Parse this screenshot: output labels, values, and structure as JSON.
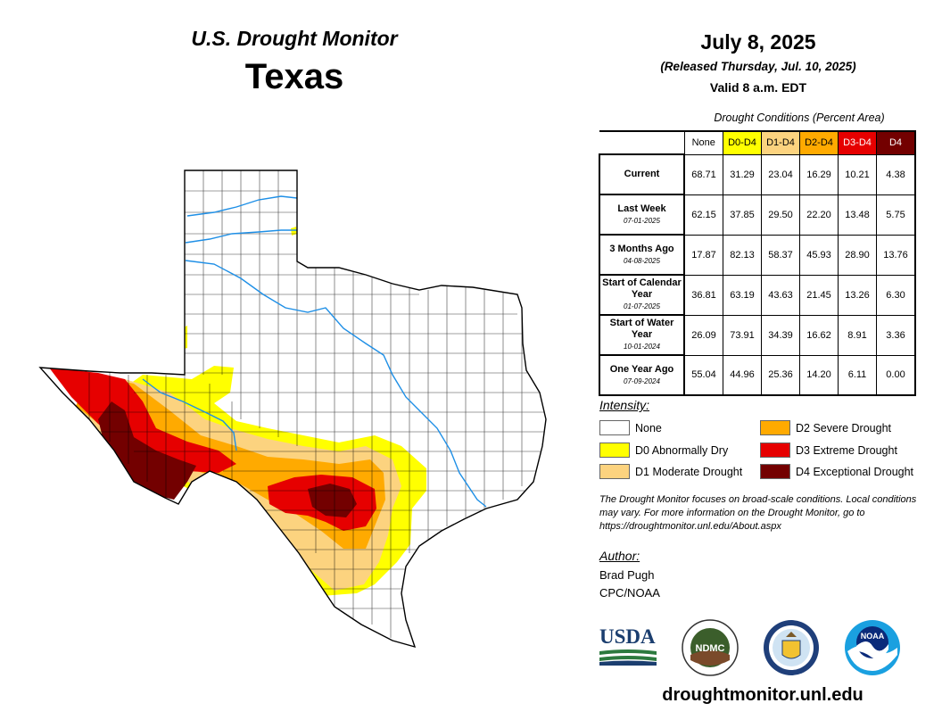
{
  "header": {
    "subtitle": "U.S. Drought Monitor",
    "title": "Texas",
    "date": "July 8, 2025",
    "released": "(Released Thursday, Jul. 10, 2025)",
    "valid": "Valid 8 a.m. EDT"
  },
  "table": {
    "title": "Drought Conditions (Percent Area)",
    "columns": [
      {
        "label": "None",
        "color": "#ffffff",
        "text_color": "#000000"
      },
      {
        "label": "D0-D4",
        "color": "#ffff00",
        "text_color": "#000000"
      },
      {
        "label": "D1-D4",
        "color": "#fcd37f",
        "text_color": "#000000"
      },
      {
        "label": "D2-D4",
        "color": "#ffaa00",
        "text_color": "#000000"
      },
      {
        "label": "D3-D4",
        "color": "#e60000",
        "text_color": "#ffffff"
      },
      {
        "label": "D4",
        "color": "#730000",
        "text_color": "#ffffff"
      }
    ],
    "rows": [
      {
        "label": "Current",
        "date": "",
        "values": [
          "68.71",
          "31.29",
          "23.04",
          "16.29",
          "10.21",
          "4.38"
        ]
      },
      {
        "label": "Last Week",
        "date": "07-01-2025",
        "values": [
          "62.15",
          "37.85",
          "29.50",
          "22.20",
          "13.48",
          "5.75"
        ]
      },
      {
        "label": "3 Months Ago",
        "date": "04-08-2025",
        "values": [
          "17.87",
          "82.13",
          "58.37",
          "45.93",
          "28.90",
          "13.76"
        ]
      },
      {
        "label": "Start of Calendar Year",
        "date": "01-07-2025",
        "values": [
          "36.81",
          "63.19",
          "43.63",
          "21.45",
          "13.26",
          "6.30"
        ]
      },
      {
        "label": "Start of Water Year",
        "date": "10-01-2024",
        "values": [
          "26.09",
          "73.91",
          "34.39",
          "16.62",
          "8.91",
          "3.36"
        ]
      },
      {
        "label": "One Year Ago",
        "date": "07-09-2024",
        "values": [
          "55.04",
          "44.96",
          "25.36",
          "14.20",
          "6.11",
          "0.00"
        ]
      }
    ]
  },
  "legend": {
    "title": "Intensity:",
    "items": [
      {
        "label": "None",
        "color": "#ffffff"
      },
      {
        "label": "D0 Abnormally Dry",
        "color": "#ffff00"
      },
      {
        "label": "D1 Moderate Drought",
        "color": "#fcd37f"
      },
      {
        "label": "D2 Severe Drought",
        "color": "#ffaa00"
      },
      {
        "label": "D3 Extreme Drought",
        "color": "#e60000"
      },
      {
        "label": "D4 Exceptional Drought",
        "color": "#730000"
      }
    ]
  },
  "note": "The Drought Monitor focuses on broad-scale conditions. Local conditions may vary. For more information on the Drought Monitor, go to https://droughtmonitor.unl.edu/About.aspx",
  "author": {
    "title": "Author:",
    "name": "Brad Pugh",
    "org": "CPC/NOAA"
  },
  "logos": {
    "usda": "USDA",
    "ndmc": "NDMC",
    "noaa": "NOAA"
  },
  "url": "droughtmonitor.unl.edu"
}
